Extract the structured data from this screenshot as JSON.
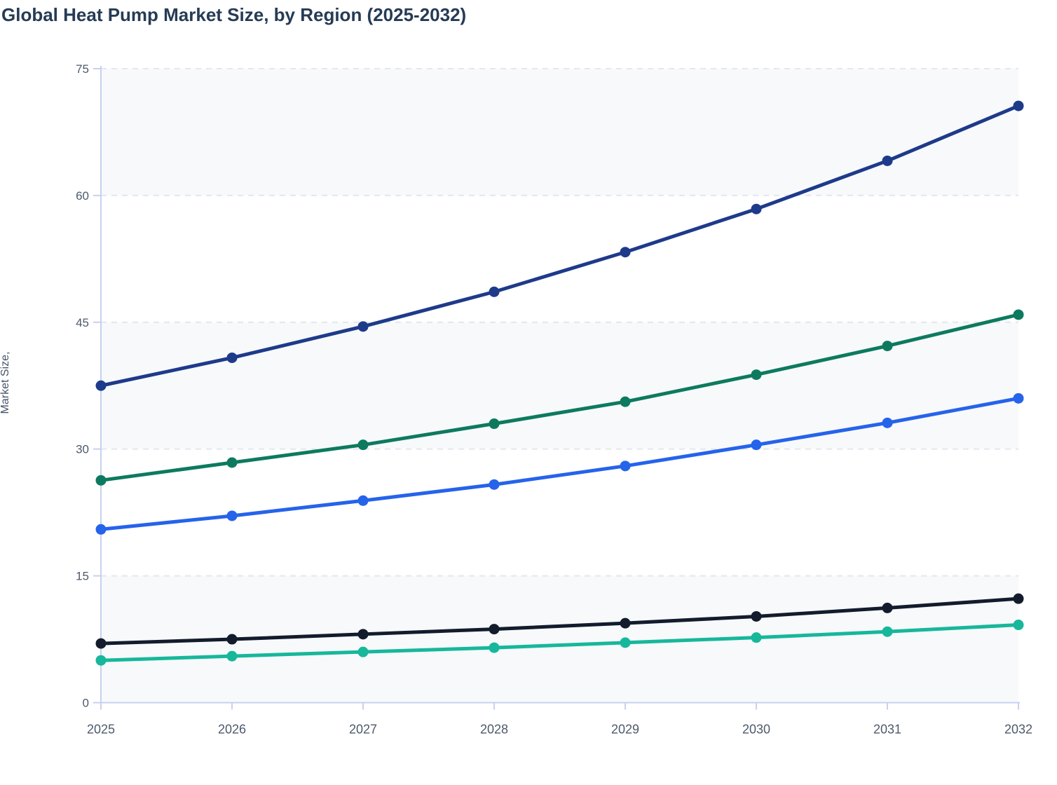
{
  "title": "Global Heat Pump Market Size, by Region (2025-2032)",
  "ylabel": "Market Size,",
  "chart_data": {
    "type": "line",
    "title": "Global Heat Pump Market Size, by Region (2025-2032)",
    "xlabel": "",
    "ylabel": "Market Size,",
    "x": [
      2025,
      2026,
      2027,
      2028,
      2029,
      2030,
      2031,
      2032
    ],
    "x_tick_labels": [
      "2025",
      "2026",
      "2027",
      "2028",
      "2029",
      "2030",
      "2031",
      "2032"
    ],
    "yticks": [
      0,
      15,
      30,
      45,
      60,
      75
    ],
    "ylim": [
      0,
      75
    ],
    "grid": "horizontal-dashed",
    "alternating_bands": true,
    "legend_position": "none",
    "marker": "circle",
    "series": [
      {
        "name": "series-navy",
        "color": "#1e3a8a",
        "values": [
          37.5,
          40.8,
          44.5,
          48.6,
          53.3,
          58.4,
          64.1,
          70.6
        ]
      },
      {
        "name": "series-green",
        "color": "#0d7a5f",
        "values": [
          26.3,
          28.4,
          30.5,
          33.0,
          35.6,
          38.8,
          42.2,
          45.9
        ]
      },
      {
        "name": "series-blue",
        "color": "#2563eb",
        "values": [
          20.5,
          22.1,
          23.9,
          25.8,
          28.0,
          30.5,
          33.1,
          36.0
        ]
      },
      {
        "name": "series-black",
        "color": "#131c2c",
        "values": [
          7.0,
          7.5,
          8.1,
          8.7,
          9.4,
          10.2,
          11.2,
          12.3
        ]
      },
      {
        "name": "series-teal",
        "color": "#17b79b",
        "values": [
          5.0,
          5.5,
          6.0,
          6.5,
          7.1,
          7.7,
          8.4,
          9.2
        ]
      }
    ],
    "colors": {
      "axis_line": "#c7d1f0",
      "gridline": "#e4e7ed",
      "band_fill": "#f7f9fb",
      "tick_text": "#4d5a6b",
      "title_text": "#263b55"
    }
  }
}
